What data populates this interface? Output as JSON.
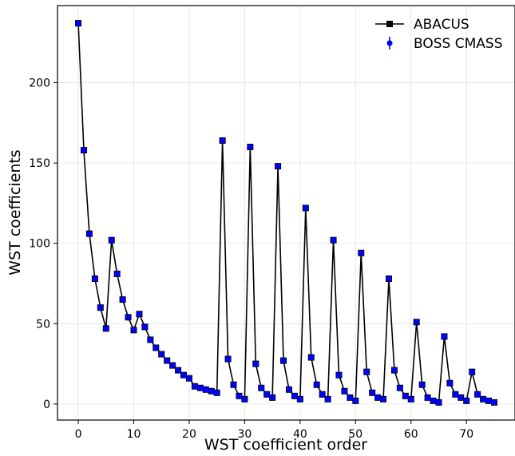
{
  "chart_data": {
    "type": "line",
    "title": "",
    "xlabel": "WST coefficient order",
    "ylabel": "WST coefficients",
    "xlim": [
      -3.75,
      78.75
    ],
    "ylim": [
      -10,
      248
    ],
    "xticks": [
      0,
      10,
      20,
      30,
      40,
      50,
      60,
      70
    ],
    "yticks": [
      0,
      50,
      100,
      150,
      200
    ],
    "grid": true,
    "legend_position": "top-right",
    "series": [
      {
        "name": "ABACUS",
        "style": "line-with-square-markers",
        "color": "#000000",
        "marker_color": "#000000",
        "x": [
          0,
          1,
          2,
          3,
          4,
          5,
          6,
          7,
          8,
          9,
          10,
          11,
          12,
          13,
          14,
          15,
          16,
          17,
          18,
          19,
          20,
          21,
          22,
          23,
          24,
          25,
          26,
          27,
          28,
          29,
          30,
          31,
          32,
          33,
          34,
          35,
          36,
          37,
          38,
          39,
          40,
          41,
          42,
          43,
          44,
          45,
          46,
          47,
          48,
          49,
          50,
          51,
          52,
          53,
          54,
          55,
          56,
          57,
          58,
          59,
          60,
          61,
          62,
          63,
          64,
          65,
          66,
          67,
          68,
          69,
          70,
          71,
          72,
          73,
          74,
          75
        ],
        "values": [
          237,
          158,
          106,
          78,
          60,
          47,
          102,
          81,
          65,
          54,
          46,
          56,
          48,
          40,
          35,
          31,
          27,
          24,
          21,
          18,
          16,
          11,
          10,
          9,
          8,
          7,
          164,
          28,
          12,
          5,
          3,
          160,
          25,
          10,
          6,
          4,
          148,
          27,
          9,
          5,
          3,
          122,
          29,
          12,
          6,
          3,
          102,
          18,
          8,
          4,
          2,
          94,
          20,
          7,
          4,
          3,
          78,
          21,
          10,
          5,
          3,
          51,
          12,
          4,
          2,
          1,
          42,
          13,
          6,
          4,
          2,
          20,
          6,
          3,
          2,
          1
        ]
      },
      {
        "name": "BOSS CMASS",
        "style": "markers-with-error-bars",
        "color": "#0000ff",
        "marker_color": "#0000ff",
        "x": [
          0,
          1,
          2,
          3,
          4,
          5,
          6,
          7,
          8,
          9,
          10,
          11,
          12,
          13,
          14,
          15,
          16,
          17,
          18,
          19,
          20,
          21,
          22,
          23,
          24,
          25,
          26,
          27,
          28,
          29,
          30,
          31,
          32,
          33,
          34,
          35,
          36,
          37,
          38,
          39,
          40,
          41,
          42,
          43,
          44,
          45,
          46,
          47,
          48,
          49,
          50,
          51,
          52,
          53,
          54,
          55,
          56,
          57,
          58,
          59,
          60,
          61,
          62,
          63,
          64,
          65,
          66,
          67,
          68,
          69,
          70,
          71,
          72,
          73,
          74,
          75
        ],
        "values": [
          237,
          158,
          106,
          78,
          60,
          47,
          102,
          81,
          65,
          54,
          46,
          56,
          48,
          40,
          35,
          31,
          27,
          24,
          21,
          18,
          16,
          11,
          10,
          9,
          8,
          7,
          164,
          28,
          12,
          5,
          3,
          160,
          25,
          10,
          6,
          4,
          148,
          27,
          9,
          5,
          3,
          122,
          29,
          12,
          6,
          3,
          102,
          18,
          8,
          4,
          2,
          94,
          20,
          7,
          4,
          3,
          78,
          21,
          10,
          5,
          3,
          51,
          12,
          4,
          2,
          1,
          42,
          13,
          6,
          4,
          2,
          20,
          6,
          3,
          2,
          1
        ]
      }
    ]
  }
}
